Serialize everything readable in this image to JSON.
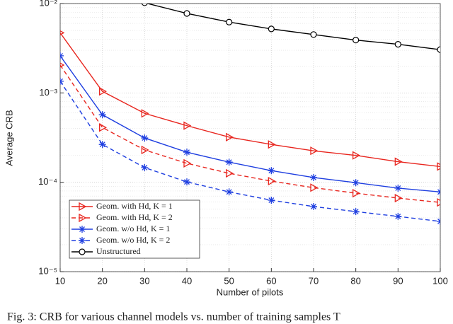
{
  "chart_data": {
    "type": "line",
    "log_y": true,
    "grid": true,
    "minor_grid": true,
    "legend_position": "lower-left",
    "xlabel": "Number of pilots",
    "ylabel": "Average CRB",
    "caption": "Fig. 3: CRB for various channel models vs. number of training samples T",
    "x": [
      10,
      20,
      30,
      40,
      50,
      60,
      70,
      80,
      90,
      100
    ],
    "xlim": [
      10,
      100
    ],
    "xticks": [
      10,
      20,
      30,
      40,
      50,
      60,
      70,
      80,
      90,
      100
    ],
    "ylim": [
      1e-05,
      0.01
    ],
    "yticks": [
      {
        "value": 1e-05,
        "label": "10⁻⁵"
      },
      {
        "value": 0.0001,
        "label": "10⁻⁴"
      },
      {
        "value": 0.001,
        "label": "10⁻³"
      },
      {
        "value": 0.01,
        "label": "10⁻²"
      }
    ],
    "series": [
      {
        "name": "Geom. with Hd, K = 1",
        "color": "#e8261f",
        "dashed": false,
        "marker": "triangle-right",
        "values": [
          0.0047,
          0.00104,
          0.00059,
          0.00043,
          0.00032,
          0.000265,
          0.000225,
          0.0002,
          0.00017,
          0.00015
        ]
      },
      {
        "name": "Geom. with Hd, K = 2",
        "color": "#e8261f",
        "dashed": true,
        "marker": "triangle-right",
        "values": [
          0.00205,
          0.00041,
          0.00023,
          0.000163,
          0.000126,
          0.000103,
          8.7e-05,
          7.55e-05,
          6.65e-05,
          5.95e-05
        ]
      },
      {
        "name": "Geom. w/o Hd, K = 1",
        "color": "#1f3fe0",
        "dashed": false,
        "marker": "asterisk",
        "values": [
          0.0026,
          0.00057,
          0.000313,
          0.000217,
          0.000168,
          0.000135,
          0.000113,
          9.9e-05,
          8.6e-05,
          7.8e-05
        ]
      },
      {
        "name": "Geom. w/o Hd, K = 2",
        "color": "#1f3fe0",
        "dashed": true,
        "marker": "asterisk",
        "values": [
          0.00135,
          0.000265,
          0.000146,
          0.000101,
          7.8e-05,
          6.3e-05,
          5.35e-05,
          4.7e-05,
          4.15e-05,
          3.65e-05
        ]
      },
      {
        "name": "Unstructured",
        "color": "#000000",
        "dashed": false,
        "marker": "circle",
        "values": [
          null,
          null,
          0.0102,
          0.00775,
          0.0062,
          0.0052,
          0.0045,
          0.0039,
          0.0035,
          0.00305
        ]
      }
    ]
  }
}
